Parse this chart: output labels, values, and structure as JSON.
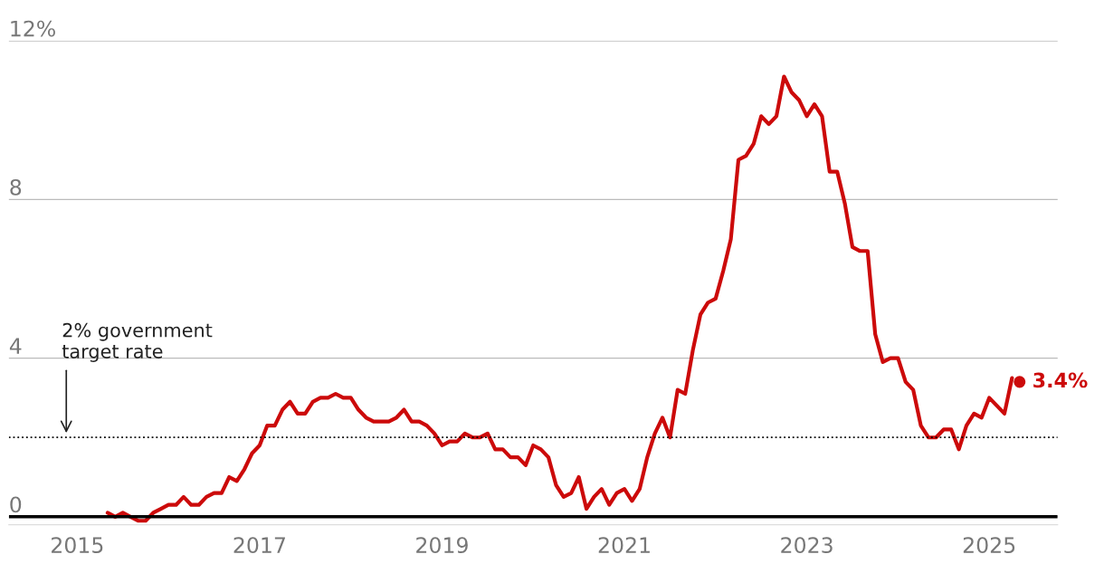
{
  "chart_data": {
    "type": "line",
    "x": [
      "2015-05",
      "2015-06",
      "2015-07",
      "2015-08",
      "2015-09",
      "2015-10",
      "2015-11",
      "2015-12",
      "2016-01",
      "2016-02",
      "2016-03",
      "2016-04",
      "2016-05",
      "2016-06",
      "2016-07",
      "2016-08",
      "2016-09",
      "2016-10",
      "2016-11",
      "2016-12",
      "2017-01",
      "2017-02",
      "2017-03",
      "2017-04",
      "2017-05",
      "2017-06",
      "2017-07",
      "2017-08",
      "2017-09",
      "2017-10",
      "2017-11",
      "2017-12",
      "2018-01",
      "2018-02",
      "2018-03",
      "2018-04",
      "2018-05",
      "2018-06",
      "2018-07",
      "2018-08",
      "2018-09",
      "2018-10",
      "2018-11",
      "2018-12",
      "2019-01",
      "2019-02",
      "2019-03",
      "2019-04",
      "2019-05",
      "2019-06",
      "2019-07",
      "2019-08",
      "2019-09",
      "2019-10",
      "2019-11",
      "2019-12",
      "2020-01",
      "2020-02",
      "2020-03",
      "2020-04",
      "2020-05",
      "2020-06",
      "2020-07",
      "2020-08",
      "2020-09",
      "2020-10",
      "2020-11",
      "2020-12",
      "2021-01",
      "2021-02",
      "2021-03",
      "2021-04",
      "2021-05",
      "2021-06",
      "2021-07",
      "2021-08",
      "2021-09",
      "2021-10",
      "2021-11",
      "2021-12",
      "2022-01",
      "2022-02",
      "2022-03",
      "2022-04",
      "2022-05",
      "2022-06",
      "2022-07",
      "2022-08",
      "2022-09",
      "2022-10",
      "2022-11",
      "2022-12",
      "2023-01",
      "2023-02",
      "2023-03",
      "2023-04",
      "2023-05",
      "2023-06",
      "2023-07",
      "2023-08",
      "2023-09",
      "2023-10",
      "2023-11",
      "2023-12",
      "2024-01",
      "2024-02",
      "2024-03",
      "2024-04",
      "2024-05",
      "2024-06",
      "2024-07",
      "2024-08",
      "2024-09",
      "2024-10",
      "2024-11",
      "2024-12",
      "2025-01",
      "2025-02",
      "2025-03",
      "2025-04"
    ],
    "series": [
      {
        "color": "#cc0a0a",
        "values": [
          0.1,
          0.0,
          0.1,
          0.0,
          -0.1,
          -0.1,
          0.1,
          0.2,
          0.3,
          0.3,
          0.5,
          0.3,
          0.3,
          0.5,
          0.6,
          0.6,
          1.0,
          0.9,
          1.2,
          1.6,
          1.8,
          2.3,
          2.3,
          2.7,
          2.9,
          2.6,
          2.6,
          2.9,
          3.0,
          3.0,
          3.1,
          3.0,
          3.0,
          2.7,
          2.5,
          2.4,
          2.4,
          2.4,
          2.5,
          2.7,
          2.4,
          2.4,
          2.3,
          2.1,
          1.8,
          1.9,
          1.9,
          2.1,
          2.0,
          2.0,
          2.1,
          1.7,
          1.7,
          1.5,
          1.5,
          1.3,
          1.8,
          1.7,
          1.5,
          0.8,
          0.5,
          0.6,
          1.0,
          0.2,
          0.5,
          0.7,
          0.3,
          0.6,
          0.7,
          0.4,
          0.7,
          1.5,
          2.1,
          2.5,
          2.0,
          3.2,
          3.1,
          4.2,
          5.1,
          5.4,
          5.5,
          6.2,
          7.0,
          9.0,
          9.1,
          9.4,
          10.1,
          9.9,
          10.1,
          11.1,
          10.7,
          10.5,
          10.1,
          10.4,
          10.1,
          8.7,
          8.7,
          7.9,
          6.8,
          6.7,
          6.7,
          4.6,
          3.9,
          4.0,
          4.0,
          3.4,
          3.2,
          2.3,
          2.0,
          2.0,
          2.2,
          2.2,
          1.7,
          2.3,
          2.6,
          2.5,
          3.0,
          2.8,
          2.6,
          3.5
        ]
      },
      {
        "type": "scatter",
        "color": "#cc0a0a",
        "x": [
          "2025-05"
        ],
        "values": [
          3.4
        ],
        "value_labels": [
          "3.4%"
        ]
      }
    ],
    "xlim": [
      "2014-04",
      "2025-10"
    ],
    "xticks": [
      "2015",
      "2017",
      "2019",
      "2021",
      "2023",
      "2025"
    ],
    "ylim": [
      -0.2,
      12
    ],
    "yticks": [
      0,
      4,
      8,
      {
        "value": 12,
        "label": "12%"
      }
    ],
    "grid": "y",
    "ref_lines": [
      {
        "axis": "y",
        "value": 0,
        "color": "#000000",
        "line_style": "solid"
      },
      {
        "axis": "y",
        "value": 2,
        "color": "#000000",
        "line_style": "dotted",
        "label": "2% government\ntarget rate"
      }
    ]
  }
}
